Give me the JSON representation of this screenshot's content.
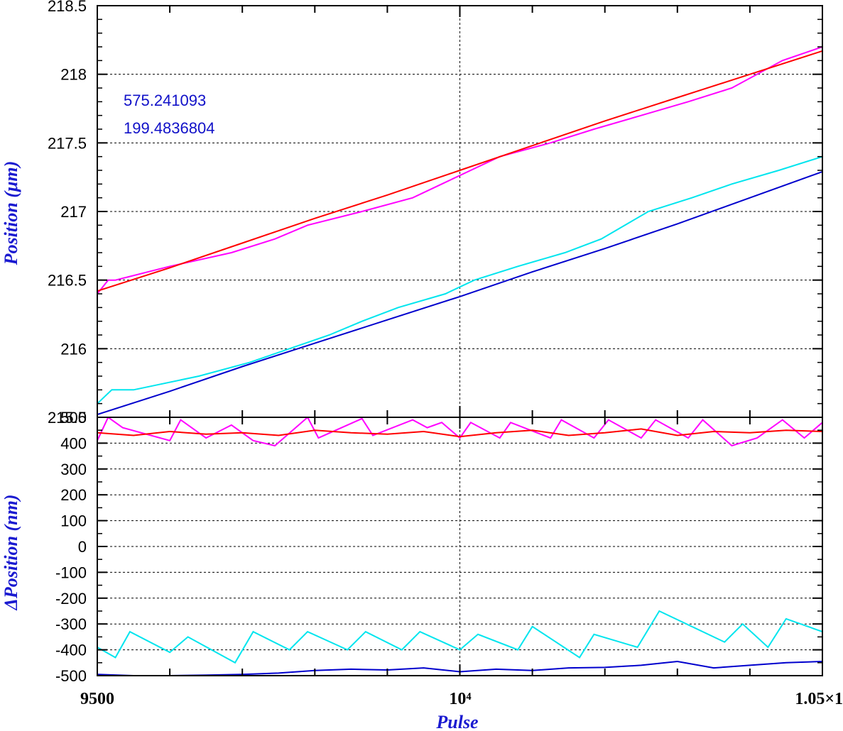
{
  "chart_data": [
    {
      "type": "line",
      "title": "",
      "xlabel": "",
      "ylabel": "Position (μm)",
      "xlim": [
        9500,
        10500
      ],
      "ylim": [
        215.5,
        218.5
      ],
      "grid": true,
      "yticks": [
        "215.5",
        "216",
        "216.5",
        "217",
        "217.5",
        "218",
        "218.5"
      ],
      "annotations": [
        "575.241093",
        "199.4836804"
      ],
      "series": [
        {
          "color": "#ff00ff",
          "x": [
            9500,
            9515,
            9525,
            9600,
            9685,
            9745,
            9790,
            9865,
            9935,
            9975,
            10015,
            10055,
            10125,
            10185,
            10250,
            10315,
            10375,
            10445,
            10500
          ],
          "y": [
            216.4,
            216.5,
            216.5,
            216.6,
            216.7,
            216.8,
            216.9,
            217.0,
            217.1,
            217.2,
            217.3,
            217.4,
            217.5,
            217.6,
            217.7,
            217.8,
            217.9,
            218.1,
            218.2
          ]
        },
        {
          "color": "#ff0000",
          "x": [
            9500,
            9600,
            9700,
            9800,
            9900,
            10000,
            10100,
            10200,
            10300,
            10400,
            10500
          ],
          "y": [
            216.42,
            216.59,
            216.77,
            216.95,
            217.12,
            217.3,
            217.48,
            217.66,
            217.83,
            218.0,
            218.17
          ]
        },
        {
          "color": "#00e5ee",
          "x": [
            9500,
            9520,
            9550,
            9640,
            9710,
            9765,
            9820,
            9865,
            9915,
            9980,
            10020,
            10080,
            10145,
            10195,
            10260,
            10320,
            10375,
            10440,
            10500
          ],
          "y": [
            215.6,
            215.7,
            215.7,
            215.8,
            215.9,
            216.0,
            216.1,
            216.2,
            216.3,
            216.4,
            216.5,
            216.6,
            216.7,
            216.8,
            217.0,
            217.1,
            217.2,
            217.3,
            217.4
          ]
        },
        {
          "color": "#0000cd",
          "x": [
            9500,
            9600,
            9700,
            9800,
            9900,
            10000,
            10100,
            10200,
            10300,
            10400,
            10500
          ],
          "y": [
            215.52,
            215.69,
            215.87,
            216.04,
            216.21,
            216.38,
            216.56,
            216.73,
            216.91,
            217.1,
            217.29
          ]
        }
      ]
    },
    {
      "type": "line",
      "title": "",
      "xlabel": "Pulse",
      "ylabel": "ΔPosition (nm)",
      "xlim": [
        9500,
        10500
      ],
      "ylim": [
        -500,
        500
      ],
      "grid": true,
      "yticks": [
        "-500",
        "-400",
        "-300",
        "-200",
        "-100",
        "0",
        "100",
        "200",
        "300",
        "400",
        "500"
      ],
      "xtick_labels": [
        "9500",
        "10⁴",
        "1.05×1"
      ],
      "series": [
        {
          "color": "#ff00ff",
          "x": [
            9500,
            9515,
            9535,
            9600,
            9615,
            9650,
            9685,
            9715,
            9745,
            9790,
            9805,
            9865,
            9880,
            9935,
            9955,
            9975,
            10000,
            10015,
            10055,
            10070,
            10125,
            10140,
            10185,
            10205,
            10250,
            10270,
            10315,
            10335,
            10375,
            10410,
            10445,
            10475,
            10500
          ],
          "y": [
            410,
            500,
            460,
            410,
            490,
            420,
            470,
            410,
            390,
            500,
            420,
            495,
            430,
            490,
            460,
            480,
            420,
            480,
            420,
            480,
            420,
            490,
            420,
            490,
            420,
            490,
            420,
            490,
            390,
            420,
            490,
            420,
            480
          ]
        },
        {
          "color": "#ff0000",
          "x": [
            9500,
            9550,
            9600,
            9650,
            9700,
            9750,
            9800,
            9850,
            9900,
            9950,
            10000,
            10050,
            10100,
            10150,
            10200,
            10250,
            10300,
            10350,
            10400,
            10450,
            10500
          ],
          "y": [
            440,
            430,
            445,
            435,
            440,
            430,
            450,
            440,
            435,
            445,
            425,
            440,
            450,
            430,
            440,
            455,
            430,
            445,
            440,
            450,
            445
          ]
        },
        {
          "color": "#00e5ee",
          "x": [
            9500,
            9525,
            9545,
            9600,
            9625,
            9690,
            9715,
            9765,
            9790,
            9845,
            9870,
            9920,
            9945,
            10000,
            10025,
            10080,
            10100,
            10165,
            10185,
            10245,
            10275,
            10365,
            10390,
            10425,
            10450,
            10500
          ],
          "y": [
            -390,
            -430,
            -330,
            -410,
            -350,
            -450,
            -330,
            -400,
            -330,
            -400,
            -330,
            -400,
            -330,
            -400,
            -340,
            -400,
            -310,
            -430,
            -340,
            -390,
            -250,
            -370,
            -300,
            -390,
            -280,
            -330
          ]
        },
        {
          "color": "#0000cd",
          "x": [
            9500,
            9550,
            9600,
            9650,
            9700,
            9750,
            9800,
            9850,
            9900,
            9950,
            10000,
            10050,
            10100,
            10150,
            10200,
            10250,
            10300,
            10350,
            10400,
            10450,
            10500
          ],
          "y": [
            -495,
            -500,
            -500,
            -498,
            -495,
            -490,
            -480,
            -475,
            -478,
            -470,
            -485,
            -475,
            -480,
            -470,
            -468,
            -460,
            -445,
            -470,
            -460,
            -450,
            -445
          ]
        }
      ]
    }
  ]
}
